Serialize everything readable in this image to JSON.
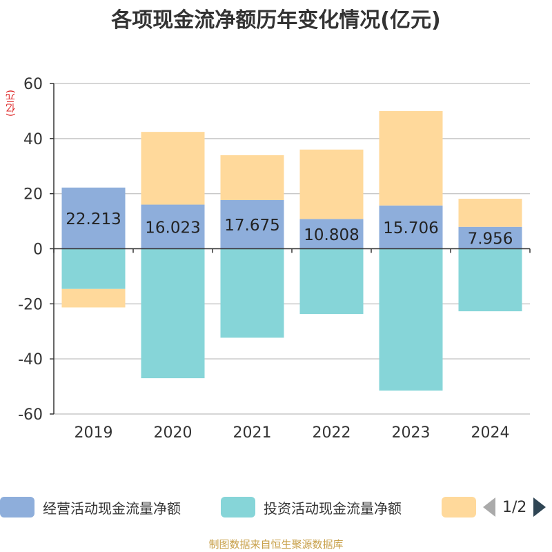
{
  "chart_data": {
    "type": "bar",
    "stacked": true,
    "title": "各项现金流净额历年变化情况(亿元)",
    "ylabel": "(亿元)",
    "xlabel": "",
    "ylim": [
      -60,
      60
    ],
    "yticks": [
      60,
      40,
      20,
      0,
      -20,
      -40,
      -60
    ],
    "categories": [
      "2019",
      "2020",
      "2021",
      "2022",
      "2023",
      "2024"
    ],
    "series": [
      {
        "name": "经营活动现金流量净额",
        "color": "#8eaedb",
        "values": [
          22.213,
          16.023,
          17.675,
          10.808,
          15.706,
          7.956
        ],
        "labels": [
          "22.213",
          "16.023",
          "17.675",
          "10.808",
          "15.706",
          "7.956"
        ]
      },
      {
        "name": "投资活动现金流量净额",
        "color": "#86d5d8",
        "values": [
          -14.6,
          -47.0,
          -32.3,
          -23.7,
          -51.5,
          -22.7
        ]
      },
      {
        "name": "",
        "color": "#ffd99b",
        "values": [
          -6.7,
          26.4,
          16.3,
          25.2,
          34.3,
          10.2
        ]
      }
    ],
    "legend": {
      "page": "1/2",
      "position": "bottom"
    }
  },
  "source": "制图数据来自恒生聚源数据库"
}
